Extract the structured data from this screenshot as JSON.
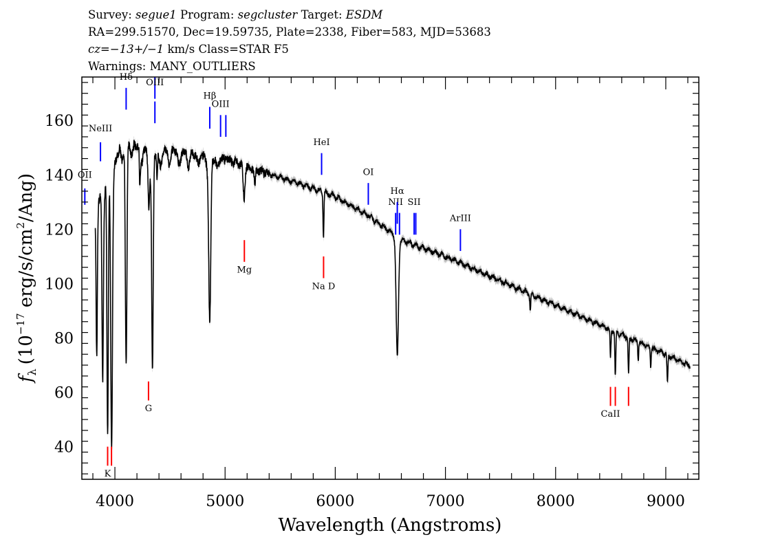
{
  "header": {
    "line1": {
      "survey_label": "Survey: ",
      "survey": "segue1",
      "program_label": " Program: ",
      "program": "segcluster",
      "target_label": " Target: ",
      "target": "ESDM"
    },
    "line2": "RA=299.51570, Dec=19.59735, Plate=2338, Fiber=583, MJD=53683",
    "line3": {
      "cz": "cz=−13+/−1",
      "rest": " km/s Class=STAR F5"
    },
    "line4": "Warnings: MANY_OUTLIERS"
  },
  "chart_data": {
    "type": "line",
    "xlabel": "Wavelength (Angstroms)",
    "ylabel_parts": {
      "f": "f",
      "sub": "λ",
      "pre": "(10",
      "exp": "−17",
      "mid": " erg/s/cm",
      "exp2": "2",
      "post": "/Ang)"
    },
    "xlim": [
      3700,
      9300
    ],
    "ylim": [
      28,
      176
    ],
    "xticks": [
      4000,
      5000,
      6000,
      7000,
      8000,
      9000
    ],
    "yticks": [
      40,
      60,
      80,
      100,
      120,
      140,
      160
    ],
    "colors": {
      "spectrum": "#000000",
      "error_band": "#b8b8b8",
      "emission": "#0000ff",
      "absorption": "#ff0000",
      "frame": "#000000"
    },
    "continuum": {
      "x": [
        3750,
        3850,
        3950,
        4050,
        4150,
        4300,
        4500,
        4700,
        4850,
        5000,
        5200,
        5500,
        5800,
        6000,
        6300,
        6600,
        7000,
        7500,
        8000,
        8500,
        9000,
        9200
      ],
      "y": [
        118,
        130,
        140,
        150,
        152,
        148,
        149,
        148,
        146,
        146,
        143,
        139,
        135,
        132,
        125,
        116,
        110,
        101,
        92,
        83,
        74,
        70
      ]
    },
    "absorption_features": [
      {
        "x": 3835,
        "depth": 55,
        "width": 8
      },
      {
        "x": 3889,
        "depth": 65,
        "width": 9
      },
      {
        "x": 3934,
        "depth": 95,
        "width": 9
      },
      {
        "x": 3970,
        "depth": 100,
        "width": 11
      },
      {
        "x": 4102,
        "depth": 82,
        "width": 10
      },
      {
        "x": 4226,
        "depth": 12,
        "width": 6
      },
      {
        "x": 4308,
        "depth": 18,
        "width": 10
      },
      {
        "x": 4341,
        "depth": 78,
        "width": 10
      },
      {
        "x": 4383,
        "depth": 10,
        "width": 6
      },
      {
        "x": 4861,
        "depth": 60,
        "width": 13
      },
      {
        "x": 5172,
        "depth": 12,
        "width": 12
      },
      {
        "x": 5270,
        "depth": 6,
        "width": 8
      },
      {
        "x": 5893,
        "depth": 16,
        "width": 6
      },
      {
        "x": 6563,
        "depth": 44,
        "width": 15
      },
      {
        "x": 7770,
        "depth": 6,
        "width": 6
      },
      {
        "x": 8498,
        "depth": 10,
        "width": 6
      },
      {
        "x": 8542,
        "depth": 17,
        "width": 6
      },
      {
        "x": 8662,
        "depth": 14,
        "width": 6
      },
      {
        "x": 8750,
        "depth": 7,
        "width": 5
      },
      {
        "x": 8863,
        "depth": 7,
        "width": 5
      },
      {
        "x": 9015,
        "depth": 11,
        "width": 6
      }
    ],
    "emission_lines": [
      {
        "label": "OII",
        "x": 3727,
        "y0": 135,
        "y1": 129,
        "label_y": 139
      },
      {
        "label": "NeIII",
        "x": 3869,
        "y0": 152,
        "y1": 145,
        "label_y": 156
      },
      {
        "label": "Hδ",
        "x": 4102,
        "y0": 172,
        "y1": 164,
        "label_y": 175
      },
      {
        "label": "OIII",
        "x": 4363,
        "y0": 176,
        "y1": 168,
        "label_y": 173
      },
      {
        "label": "OIII",
        "x": 4363,
        "y0": 167,
        "y1": 159,
        "label_y": null
      },
      {
        "label": "Hβ",
        "x": 4861,
        "y0": 165,
        "y1": 157,
        "label_y": 168
      },
      {
        "label": "OIII",
        "x": 4959,
        "y0": 162,
        "y1": 154,
        "label_y": 165
      },
      {
        "label": "OIII",
        "x": 5007,
        "y0": 162,
        "y1": 154,
        "label_y": null
      },
      {
        "label": "HeI",
        "x": 5876,
        "y0": 148,
        "y1": 140,
        "label_y": 151
      },
      {
        "label": "OI",
        "x": 6300,
        "y0": 137,
        "y1": 129,
        "label_y": 140
      },
      {
        "label": "NII",
        "x": 6548,
        "y0": 126,
        "y1": 118,
        "label_y": 129
      },
      {
        "label": "Hα",
        "x": 6563,
        "y0": 130,
        "y1": 122,
        "label_y": 133
      },
      {
        "label": "NII",
        "x": 6583,
        "y0": 126,
        "y1": 118,
        "label_y": null
      },
      {
        "label": "SII",
        "x": 6716,
        "y0": 126,
        "y1": 118,
        "label_y": 129
      },
      {
        "label": "SII",
        "x": 6731,
        "y0": 126,
        "y1": 118,
        "label_y": null
      },
      {
        "label": "ArIII",
        "x": 7136,
        "y0": 120,
        "y1": 112,
        "label_y": 123
      }
    ],
    "absorption_lines": [
      {
        "label": "K",
        "x": 3934,
        "y0": 40,
        "y1": 33,
        "label_y": 29
      },
      {
        "label": "H",
        "x": 3969,
        "y0": 40,
        "y1": 33,
        "label_y": null
      },
      {
        "label": "G",
        "x": 4305,
        "y0": 64,
        "y1": 57,
        "label_y": 53
      },
      {
        "label": "Mg",
        "x": 5175,
        "y0": 116,
        "y1": 108,
        "label_y": 104
      },
      {
        "label": "Na D",
        "x": 5894,
        "y0": 110,
        "y1": 102,
        "label_y": 98
      },
      {
        "label": "CaII",
        "x": 8498,
        "y0": 62,
        "y1": 55,
        "label_y": 51
      },
      {
        "label": "CaII",
        "x": 8542,
        "y0": 62,
        "y1": 55,
        "label_y": null
      },
      {
        "label": "CaII",
        "x": 8662,
        "y0": 62,
        "y1": 55,
        "label_y": null
      }
    ],
    "grid": false,
    "legend": "none"
  }
}
